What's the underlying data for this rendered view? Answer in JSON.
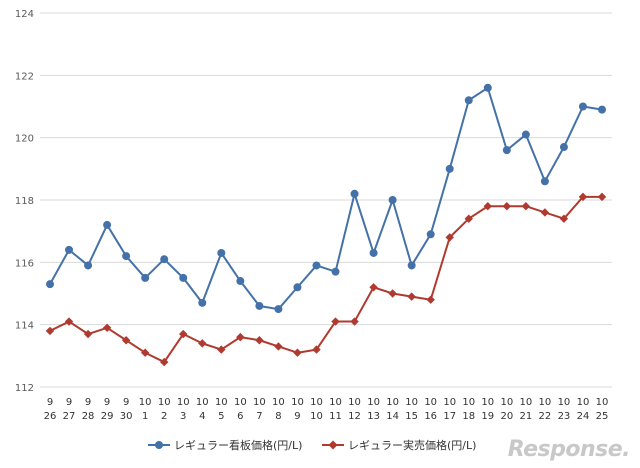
{
  "chart_data": {
    "type": "line",
    "categories": [
      [
        "9",
        "26"
      ],
      [
        "9",
        "27"
      ],
      [
        "9",
        "28"
      ],
      [
        "9",
        "29"
      ],
      [
        "9",
        "30"
      ],
      [
        "10",
        "1"
      ],
      [
        "10",
        "2"
      ],
      [
        "10",
        "3"
      ],
      [
        "10",
        "4"
      ],
      [
        "10",
        "5"
      ],
      [
        "10",
        "6"
      ],
      [
        "10",
        "7"
      ],
      [
        "10",
        "8"
      ],
      [
        "10",
        "9"
      ],
      [
        "10",
        "10"
      ],
      [
        "10",
        "11"
      ],
      [
        "10",
        "12"
      ],
      [
        "10",
        "13"
      ],
      [
        "10",
        "14"
      ],
      [
        "10",
        "15"
      ],
      [
        "10",
        "16"
      ],
      [
        "10",
        "17"
      ],
      [
        "10",
        "18"
      ],
      [
        "10",
        "19"
      ],
      [
        "10",
        "20"
      ],
      [
        "10",
        "21"
      ],
      [
        "10",
        "22"
      ],
      [
        "10",
        "23"
      ],
      [
        "10",
        "24"
      ],
      [
        "10",
        "25"
      ]
    ],
    "series": [
      {
        "name": "レギュラー看板価格(円/L)",
        "color": "#4472a8",
        "marker": "circle",
        "values": [
          115.3,
          116.4,
          115.9,
          117.2,
          116.2,
          115.5,
          116.1,
          115.5,
          114.7,
          116.3,
          115.4,
          114.6,
          114.5,
          115.2,
          115.9,
          115.7,
          118.2,
          116.3,
          118.0,
          115.9,
          116.9,
          119.0,
          121.2,
          121.6,
          119.6,
          120.1,
          118.6,
          119.7,
          121.0,
          120.9
        ]
      },
      {
        "name": "レギュラー実売価格(円/L)",
        "color": "#b03a30",
        "marker": "diamond",
        "values": [
          113.8,
          114.1,
          113.7,
          113.9,
          113.5,
          113.1,
          112.8,
          113.7,
          113.4,
          113.2,
          113.6,
          113.5,
          113.3,
          113.1,
          113.2,
          114.1,
          114.1,
          115.2,
          115.0,
          114.9,
          114.8,
          116.8,
          117.4,
          117.8,
          117.8,
          117.8,
          117.6,
          117.4,
          118.1,
          118.1
        ]
      }
    ],
    "ylim": [
      112,
      124
    ],
    "yticks": [
      112,
      114,
      116,
      118,
      120,
      122,
      124
    ],
    "grid": true,
    "legend_position": "bottom"
  },
  "watermark": "Response."
}
